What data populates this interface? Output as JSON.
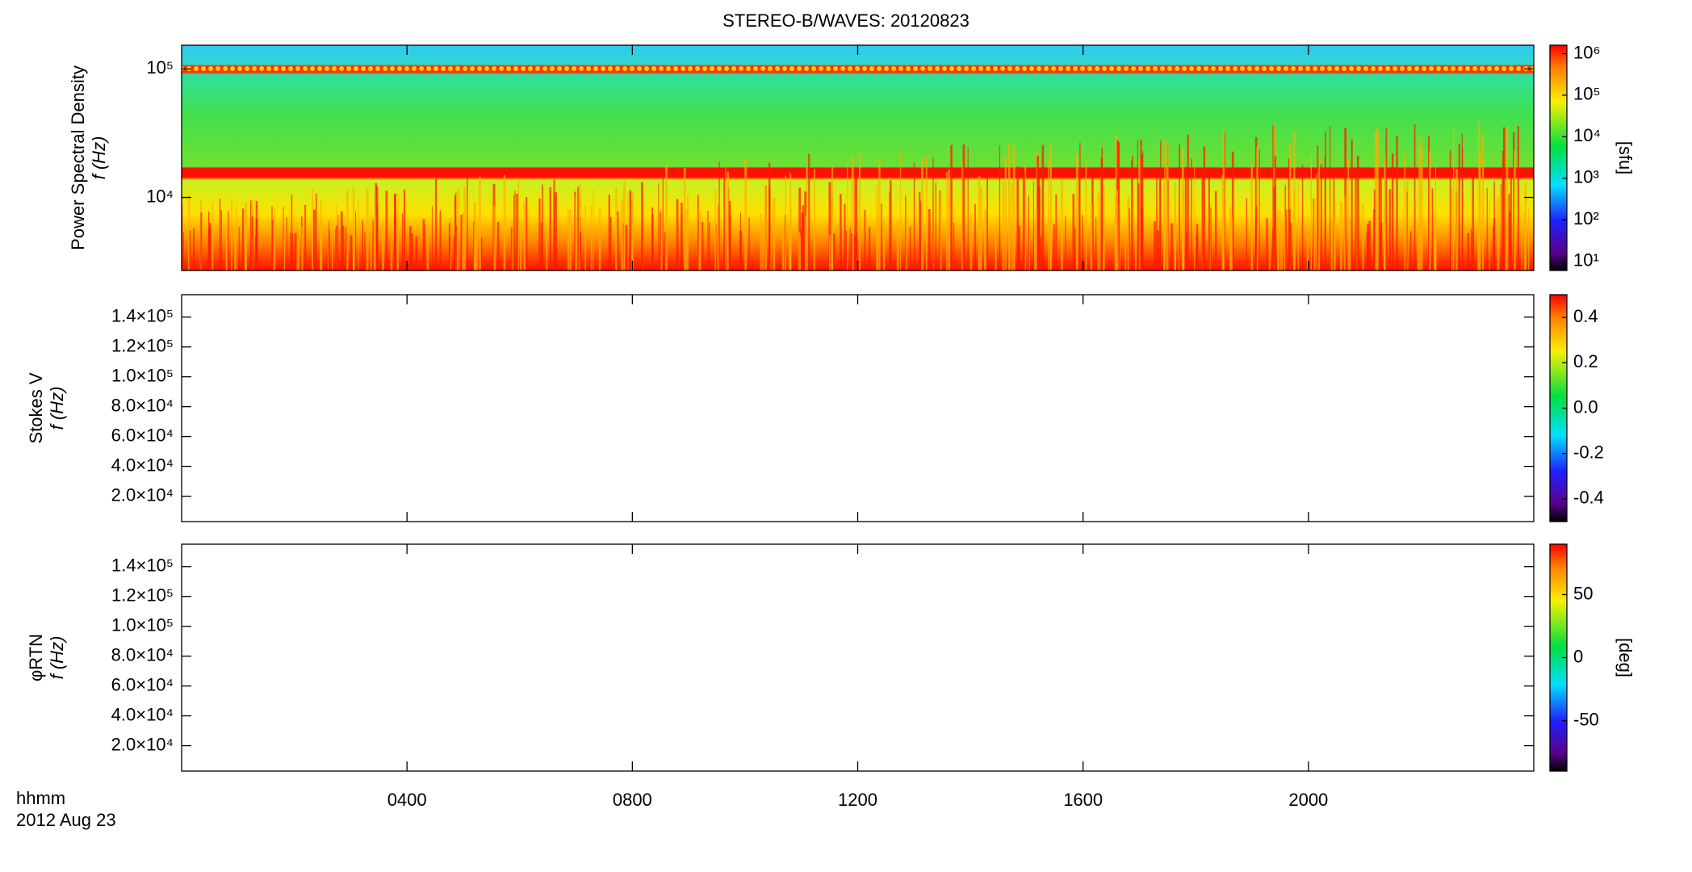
{
  "chart_data": [
    {
      "type": "spectrogram",
      "title": "STEREO-B/WAVES: 20120823",
      "ylabel": "Power Spectral Density",
      "ylabel2": "f (Hz)",
      "ylog": true,
      "ylim": [
        2700,
        153000
      ],
      "yticks": [
        {
          "value": 10000,
          "label": "10⁴"
        },
        {
          "value": 100000,
          "label": "10⁵"
        }
      ],
      "clog": true,
      "clim": [
        6,
        1600000
      ],
      "cticks": [
        {
          "value": 10,
          "label": "10¹"
        },
        {
          "value": 100,
          "label": "10²"
        },
        {
          "value": 1000,
          "label": "10³"
        },
        {
          "value": 10000,
          "label": "10⁴"
        },
        {
          "value": 100000,
          "label": "10⁵"
        },
        {
          "value": 1000000,
          "label": "10⁶"
        }
      ],
      "clabel": "[sfu]"
    },
    {
      "type": "spectrogram",
      "ylabel": "Stokes V",
      "ylabel2": "f (Hz)",
      "ylog": false,
      "ylim": [
        3000,
        155000
      ],
      "yticks": [
        {
          "value": 20000,
          "label": "2.0×10⁴"
        },
        {
          "value": 40000,
          "label": "4.0×10⁴"
        },
        {
          "value": 60000,
          "label": "6.0×10⁴"
        },
        {
          "value": 80000,
          "label": "8.0×10⁴"
        },
        {
          "value": 100000,
          "label": "1.0×10⁵"
        },
        {
          "value": 120000,
          "label": "1.2×10⁵"
        },
        {
          "value": 140000,
          "label": "1.4×10⁵"
        }
      ],
      "clog": false,
      "clim": [
        -0.5,
        0.5
      ],
      "cticks": [
        -0.4,
        -0.2,
        {
          "value": 0,
          "label": "0.0"
        },
        0.2,
        0.4
      ]
    },
    {
      "type": "spectrogram",
      "ylabel": "φRTN",
      "ylabel2": "f (Hz)",
      "ylog": false,
      "ylim": [
        3000,
        155000
      ],
      "yticks": [
        {
          "value": 20000,
          "label": "2.0×10⁴"
        },
        {
          "value": 40000,
          "label": "4.0×10⁴"
        },
        {
          "value": 60000,
          "label": "6.0×10⁴"
        },
        {
          "value": 80000,
          "label": "8.0×10⁴"
        },
        {
          "value": 100000,
          "label": "1.0×10⁵"
        },
        {
          "value": 120000,
          "label": "1.2×10⁵"
        },
        {
          "value": 140000,
          "label": "1.4×10⁵"
        }
      ],
      "clog": false,
      "clim": [
        -90,
        90
      ],
      "cticks": [
        -50,
        0,
        50
      ],
      "clabel": "[deg]",
      "xlim": [
        0,
        24
      ],
      "xticks": [
        {
          "value": 4,
          "label": "0400"
        },
        {
          "value": 8,
          "label": "0800"
        },
        {
          "value": 12,
          "label": "1200"
        },
        {
          "value": 16,
          "label": "1600"
        },
        {
          "value": 20,
          "label": "2000"
        }
      ],
      "xlabel": "hhmm",
      "date": "2012 Aug 23"
    }
  ]
}
